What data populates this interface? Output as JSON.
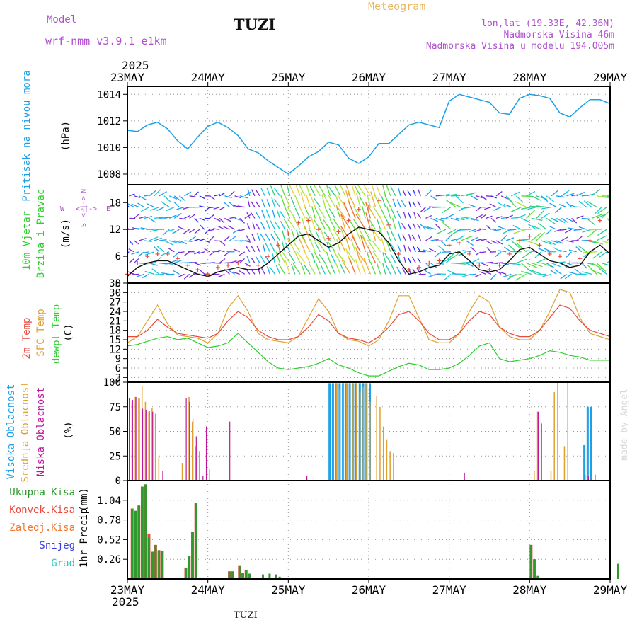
{
  "header": {
    "model_label": "Model",
    "model_name": "wrf-nmm_v3.9.1 e1km",
    "station": "TUZI",
    "meteogram": "Meteogram",
    "lonlat": "lon,lat (19.33E, 42.36N)",
    "elevation": "Nadmorska Visina 46m",
    "model_elevation": "Nadmorska Visina u modelu 194.005m",
    "year_top": "2025",
    "year_bottom": "2025",
    "footer_station": "TUZI",
    "credit": "made by Angel"
  },
  "colors": {
    "pressure": "#1ea0e6",
    "temp2m": "#e84a3c",
    "sfc": "#e0a030",
    "dewpt": "#2ccf2c",
    "high_cloud": "#1ea0e6",
    "mid_cloud": "#e0a030",
    "low_cloud": "#c0169a",
    "total_precip": "#2e9a2e",
    "conv_precip": "#e84a3c",
    "frozen_precip": "#f07830",
    "snow": "#3c3cdc",
    "hail": "#22c4c4",
    "wind_speed": "#111111",
    "gust": "#e84a3c"
  },
  "chart_data": [
    {
      "type": "line",
      "panel": "pressure",
      "ylabel": "Pritisak na nivou mora",
      "unit": "(hPa)",
      "x_categories": [
        "23MAY",
        "24MAY",
        "25MAY",
        "26MAY",
        "27MAY",
        "28MAY",
        "29MAY"
      ],
      "yticks": [
        1008,
        1010,
        1012,
        1014
      ],
      "ylim": [
        1007.2,
        1014.6
      ],
      "x_hours": [
        0,
        3,
        6,
        9,
        12,
        15,
        18,
        21,
        24,
        27,
        30,
        33,
        36,
        39,
        42,
        45,
        48,
        51,
        54,
        57,
        60,
        63,
        66,
        69,
        72,
        75,
        78,
        81,
        84,
        87,
        90,
        93,
        96,
        99,
        102,
        105,
        108,
        111,
        114,
        117,
        120,
        123,
        126,
        129,
        132,
        135,
        138,
        141,
        144
      ],
      "series": [
        {
          "values": [
            1011.3,
            1011.2,
            1011.7,
            1011.9,
            1011.4,
            1010.5,
            1009.9,
            1010.8,
            1011.6,
            1011.9,
            1011.5,
            1010.9,
            1009.9,
            1009.6,
            1009.0,
            1008.5,
            1008.0,
            1008.6,
            1009.3,
            1009.7,
            1010.4,
            1010.2,
            1009.2,
            1008.8,
            1009.3,
            1010.3,
            1010.3,
            1011.0,
            1011.7,
            1011.9,
            1011.7,
            1011.5,
            1013.5,
            1014.0,
            1013.8,
            1013.6,
            1013.4,
            1012.6,
            1012.5,
            1013.7,
            1014.0,
            1013.9,
            1013.7,
            1012.6,
            1012.3,
            1013.0,
            1013.6,
            1013.6,
            1013.3
          ]
        }
      ]
    },
    {
      "type": "line",
      "panel": "wind",
      "ylabel": "10m Vjetar",
      "ylabel2": "Brzina i Pravac",
      "unit": "(m/s)",
      "yticks": [
        0,
        6,
        12,
        18
      ],
      "ylim": [
        0,
        22
      ],
      "compass_n": "N",
      "compass_w": "W",
      "compass_e": "E",
      "compass_s": "S",
      "compass_top": "<-|->",
      "compass_mid": "<-|->",
      "compass_bot": "<-|->",
      "x_hours": [
        0,
        3,
        6,
        9,
        12,
        15,
        18,
        21,
        24,
        27,
        30,
        33,
        36,
        39,
        42,
        45,
        48,
        51,
        54,
        57,
        60,
        63,
        66,
        69,
        72,
        75,
        78,
        81,
        84,
        87,
        90,
        93,
        96,
        99,
        102,
        105,
        108,
        111,
        114,
        117,
        120,
        123,
        126,
        129,
        132,
        135,
        138,
        141,
        144
      ],
      "series": [
        {
          "name": "speed",
          "values": [
            1.5,
            3.5,
            4.5,
            5.0,
            5.0,
            4.0,
            3.0,
            2.0,
            1.5,
            2.5,
            3.0,
            3.5,
            3.0,
            3.0,
            4.5,
            6.5,
            8.5,
            10.5,
            11.0,
            9.5,
            8.0,
            9.0,
            11.0,
            12.5,
            12.0,
            11.5,
            9.0,
            5.0,
            2.0,
            2.5,
            3.5,
            4.0,
            6.5,
            7.0,
            5.0,
            3.0,
            2.5,
            3.0,
            5.0,
            7.5,
            8.0,
            6.5,
            5.0,
            4.5,
            3.5,
            4.0,
            7.0,
            8.5,
            6.5
          ]
        },
        {
          "name": "gust",
          "values": [
            2.0,
            4.5,
            6.0,
            6.5,
            6.5,
            5.5,
            4.0,
            3.0,
            2.0,
            3.5,
            4.0,
            4.5,
            4.0,
            4.0,
            6.0,
            8.5,
            11.0,
            13.5,
            14.0,
            12.0,
            10.0,
            11.5,
            14.0,
            16.5,
            17.0,
            18.5,
            13.0,
            6.5,
            3.0,
            3.5,
            4.5,
            5.0,
            8.5,
            9.0,
            6.5,
            4.0,
            3.0,
            4.0,
            6.5,
            9.5,
            10.5,
            8.5,
            6.5,
            6.0,
            4.5,
            5.5,
            9.5,
            14.0,
            11.0
          ]
        }
      ]
    },
    {
      "type": "line",
      "panel": "temperature",
      "ylabel": "2m Temp",
      "ylabel_sfc": "SFC Temp",
      "ylabel_dew": "dewpt Temp",
      "unit": "(C)",
      "yticks": [
        3,
        6,
        9,
        12,
        15,
        18,
        21,
        24,
        27,
        30,
        33
      ],
      "ylim": [
        1.5,
        33
      ],
      "x_hours": [
        0,
        3,
        6,
        9,
        12,
        15,
        18,
        21,
        24,
        27,
        30,
        33,
        36,
        39,
        42,
        45,
        48,
        51,
        54,
        57,
        60,
        63,
        66,
        69,
        72,
        75,
        78,
        81,
        84,
        87,
        90,
        93,
        96,
        99,
        102,
        105,
        108,
        111,
        114,
        117,
        120,
        123,
        126,
        129,
        132,
        135,
        138,
        141,
        144
      ],
      "series": [
        {
          "name": "2m Temp",
          "values": [
            16,
            16,
            18,
            21.5,
            19,
            17,
            16.5,
            16,
            15.5,
            17,
            21,
            24,
            22,
            18,
            16,
            15,
            15,
            16,
            19,
            23,
            21,
            17,
            15.5,
            15,
            14,
            16,
            19,
            23,
            24,
            21,
            17,
            15,
            15,
            17,
            21,
            24,
            23,
            19,
            17,
            16,
            16,
            18,
            22,
            26,
            25,
            21,
            18,
            17,
            16
          ]
        },
        {
          "name": "SFC Temp",
          "values": [
            14,
            16,
            21,
            26,
            20,
            16.5,
            16,
            15.5,
            14,
            17,
            25,
            29,
            24,
            17,
            15,
            14.5,
            14,
            16,
            22,
            28,
            24,
            17,
            15,
            14.5,
            13,
            15,
            21,
            29,
            29,
            22,
            15,
            14,
            14,
            17,
            24,
            29,
            27,
            19,
            16,
            15,
            15,
            18,
            24,
            31,
            30,
            22,
            17,
            16,
            15
          ]
        },
        {
          "name": "dewpt Temp",
          "values": [
            13,
            13.5,
            14.5,
            15.5,
            16,
            15,
            15.5,
            14,
            12.5,
            13,
            14,
            17,
            14,
            11,
            8,
            6,
            5.5,
            6,
            6.5,
            7.5,
            9,
            7,
            6,
            4.5,
            3.5,
            3.5,
            5,
            6.5,
            7.5,
            7,
            5.5,
            5.5,
            6,
            7.5,
            10,
            13,
            14,
            9,
            8,
            8.5,
            9,
            10,
            11.5,
            11,
            10,
            9.5,
            8.5,
            8.5,
            8.5
          ]
        }
      ]
    },
    {
      "type": "bar",
      "panel": "clouds",
      "ylabel_high": "Visoka Oblacnost",
      "ylabel_mid": "Srednja Oblacnost",
      "ylabel_low": "Niska Oblacnost",
      "unit": "(%)",
      "yticks": [
        0,
        25,
        50,
        75,
        100
      ],
      "ylim": [
        0,
        100
      ],
      "high": [
        [
          60,
          99
        ],
        [
          61,
          99
        ],
        [
          62,
          99
        ],
        [
          63,
          99
        ],
        [
          64,
          99
        ],
        [
          65,
          99
        ],
        [
          66,
          99
        ],
        [
          67,
          99
        ],
        [
          68,
          99
        ],
        [
          69,
          99
        ],
        [
          70,
          99
        ],
        [
          71,
          99
        ],
        [
          72,
          99
        ],
        [
          136,
          36
        ],
        [
          137,
          75
        ],
        [
          138,
          75
        ]
      ],
      "mid": [
        [
          1,
          80
        ],
        [
          2,
          85
        ],
        [
          3,
          84
        ],
        [
          4,
          96
        ],
        [
          5,
          80
        ],
        [
          6,
          70
        ],
        [
          7,
          74
        ],
        [
          8,
          68
        ],
        [
          9,
          24
        ],
        [
          16,
          18
        ],
        [
          18,
          85
        ],
        [
          19,
          60
        ],
        [
          20,
          35
        ],
        [
          62,
          99
        ],
        [
          63,
          93
        ],
        [
          64,
          98
        ],
        [
          65,
          99
        ],
        [
          66,
          98
        ],
        [
          67,
          99
        ],
        [
          68,
          99
        ],
        [
          69,
          90
        ],
        [
          70,
          95
        ],
        [
          71,
          99
        ],
        [
          72,
          80
        ],
        [
          74,
          86
        ],
        [
          75,
          75
        ],
        [
          76,
          55
        ],
        [
          77,
          42
        ],
        [
          78,
          30
        ],
        [
          79,
          28
        ],
        [
          121,
          10
        ],
        [
          122,
          70
        ],
        [
          126,
          10
        ],
        [
          127,
          90
        ],
        [
          128,
          100
        ],
        [
          130,
          35
        ],
        [
          131,
          100
        ]
      ],
      "low": [
        [
          0,
          84
        ],
        [
          1,
          82
        ],
        [
          2,
          85
        ],
        [
          3,
          84
        ],
        [
          4,
          73
        ],
        [
          5,
          72
        ],
        [
          6,
          71
        ],
        [
          7,
          70
        ],
        [
          10,
          10
        ],
        [
          17,
          84
        ],
        [
          18,
          80
        ],
        [
          19,
          63
        ],
        [
          20,
          45
        ],
        [
          21,
          30
        ],
        [
          22,
          5
        ],
        [
          23,
          55
        ],
        [
          24,
          12
        ],
        [
          30,
          60
        ],
        [
          53,
          5
        ],
        [
          100,
          8
        ],
        [
          122,
          70
        ],
        [
          123,
          58
        ],
        [
          136,
          6
        ],
        [
          137,
          5
        ],
        [
          139,
          6
        ]
      ]
    },
    {
      "type": "bar",
      "panel": "precipitation",
      "ylabel": "1hr Precip",
      "unit": "(mm)",
      "legend": [
        "Ukupna Kisa",
        "Konvek.Kisa",
        "Zaledj.Kisa",
        "Snijeg",
        "Grad"
      ],
      "yticks": [
        0.26,
        0.52,
        0.78,
        1.04
      ],
      "ylim": [
        0,
        1.3
      ],
      "total": [
        [
          1,
          0.93
        ],
        [
          2,
          0.9
        ],
        [
          3,
          0.97
        ],
        [
          4,
          1.22
        ],
        [
          5,
          1.25
        ],
        [
          6,
          0.55
        ],
        [
          7,
          0.36
        ],
        [
          8,
          0.45
        ],
        [
          9,
          0.38
        ],
        [
          10,
          0.37
        ],
        [
          17,
          0.15
        ],
        [
          18,
          0.3
        ],
        [
          19,
          0.62
        ],
        [
          20,
          1.0
        ],
        [
          30,
          0.1
        ],
        [
          31,
          0.1
        ],
        [
          33,
          0.18
        ],
        [
          34,
          0.08
        ],
        [
          35,
          0.12
        ],
        [
          36,
          0.07
        ],
        [
          40,
          0.06
        ],
        [
          42,
          0.07
        ],
        [
          44,
          0.06
        ],
        [
          45,
          0.03
        ],
        [
          120,
          0.45
        ],
        [
          121,
          0.26
        ],
        [
          122,
          0.04
        ],
        [
          146,
          0.2
        ]
      ],
      "conv": [
        [
          1,
          0.93
        ],
        [
          2,
          0.9
        ],
        [
          3,
          0.97
        ],
        [
          4,
          1.22
        ],
        [
          5,
          1.25
        ],
        [
          6,
          0.6
        ],
        [
          7,
          0.36
        ],
        [
          8,
          0.45
        ],
        [
          9,
          0.38
        ],
        [
          10,
          0.37
        ],
        [
          17,
          0.15
        ],
        [
          18,
          0.3
        ],
        [
          19,
          0.62
        ],
        [
          20,
          1.0
        ],
        [
          30,
          0.1
        ],
        [
          31,
          0.1
        ],
        [
          33,
          0.18
        ],
        [
          34,
          0.08
        ],
        [
          35,
          0.12
        ],
        [
          120,
          0.45
        ],
        [
          121,
          0.26
        ]
      ]
    }
  ]
}
